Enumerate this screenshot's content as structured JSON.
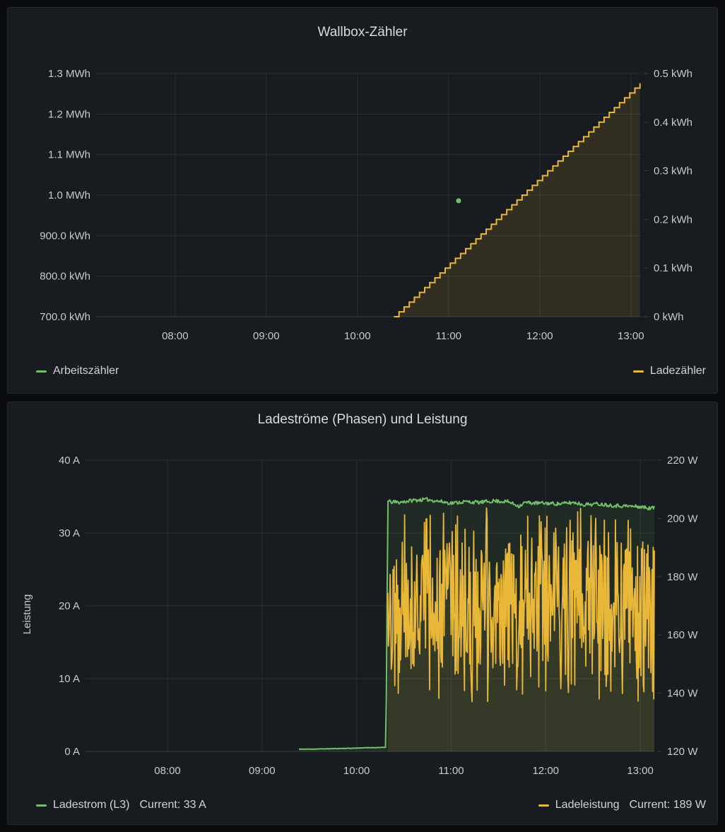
{
  "colors": {
    "page_background": "#0b0c0e",
    "panel_background": "#181b1f",
    "green": "#73bf69",
    "yellow": "#eab839",
    "grid": "rgba(204,204,220,0.10)"
  },
  "chart_data": [
    {
      "type": "line",
      "title": "Wallbox-Zähler",
      "x_ticks": [
        "08:00",
        "09:00",
        "10:00",
        "11:00",
        "12:00",
        "13:00"
      ],
      "x_tick_hours": [
        8,
        9,
        10,
        11,
        12,
        13
      ],
      "x_range_hours": [
        7.133,
        13.11
      ],
      "grid": true,
      "left_axis": {
        "ticks": [
          "1.3 MWh",
          "1.2 MWh",
          "1.1 MWh",
          "1.0 MWh",
          "900.0 kWh",
          "800.0 kWh",
          "700.0 kWh"
        ],
        "values": [
          1300,
          1200,
          1100,
          1000,
          900,
          800,
          700
        ],
        "range": [
          700,
          1300
        ],
        "unit": "kWh"
      },
      "right_axis": {
        "ticks": [
          "0.5 kWh",
          "0.4 kWh",
          "0.3 kWh",
          "0.2 kWh",
          "0.1 kWh",
          "0 kWh"
        ],
        "values": [
          0.5,
          0.4,
          0.3,
          0.2,
          0.1,
          0
        ],
        "range": [
          0,
          0.5
        ],
        "unit": "kWh"
      },
      "series": [
        {
          "name": "Arbeitszähler",
          "color": "#73bf69",
          "axis": "left",
          "style": "point",
          "points": [
            [
              11.11,
              986
            ]
          ]
        },
        {
          "name": "Ladezähler",
          "color": "#eab839",
          "axis": "right",
          "style": "step",
          "fill_opacity": 0.13,
          "step": {
            "t_start": 10.4,
            "t_end": 13.1,
            "v_start": 0,
            "v_end": 0.48,
            "steps": 48
          }
        }
      ],
      "legend": [
        {
          "label": "Arbeitszähler",
          "color": "#73bf69"
        },
        {
          "label": "Ladezähler",
          "color": "#eab839"
        }
      ],
      "legend_position": "bottom"
    },
    {
      "type": "line",
      "title": "Ladeströme (Phasen) und Leistung",
      "x_ticks": [
        "08:00",
        "09:00",
        "10:00",
        "11:00",
        "12:00",
        "13:00"
      ],
      "x_tick_hours": [
        8,
        9,
        10,
        11,
        12,
        13
      ],
      "x_range_hours": [
        7.133,
        13.149
      ],
      "grid": true,
      "left_axis": {
        "label": "Leistung",
        "ticks": [
          "40 A",
          "30 A",
          "20 A",
          "10 A",
          "0 A"
        ],
        "values": [
          40,
          30,
          20,
          10,
          0
        ],
        "range": [
          0,
          40
        ],
        "unit": "A"
      },
      "right_axis": {
        "ticks": [
          "220 W",
          "200 W",
          "180 W",
          "160 W",
          "140 W",
          "120 W"
        ],
        "values": [
          220,
          200,
          180,
          160,
          140,
          120
        ],
        "range": [
          120,
          220
        ],
        "unit": "W"
      },
      "series": [
        {
          "name": "Ladestrom (L3)",
          "color": "#73bf69",
          "axis": "left",
          "style": "line",
          "fill_opacity": 0.1,
          "jitter": 0.5,
          "seed": 11,
          "points": [
            [
              9.39,
              0.3
            ],
            [
              9.55,
              0.32
            ],
            [
              9.75,
              0.38
            ],
            [
              9.95,
              0.44
            ],
            [
              10.1,
              0.5
            ],
            [
              10.31,
              0.55
            ],
            [
              10.33,
              34.3
            ],
            [
              10.45,
              34.2
            ],
            [
              10.6,
              34.5
            ],
            [
              10.75,
              34.6
            ],
            [
              10.9,
              34.3
            ],
            [
              11.0,
              34.1
            ],
            [
              11.15,
              34.3
            ],
            [
              11.3,
              34.2
            ],
            [
              11.45,
              34.4
            ],
            [
              11.6,
              34.3
            ],
            [
              11.72,
              33.7
            ],
            [
              11.78,
              34.2
            ],
            [
              11.9,
              34.1
            ],
            [
              12.0,
              34.1
            ],
            [
              12.15,
              34.0
            ],
            [
              12.3,
              34.2
            ],
            [
              12.4,
              33.9
            ],
            [
              12.55,
              34.0
            ],
            [
              12.7,
              33.8
            ],
            [
              12.85,
              33.7
            ],
            [
              13.0,
              33.6
            ],
            [
              13.1,
              33.4
            ],
            [
              13.149,
              33.5
            ]
          ]
        },
        {
          "name": "Ladeleistung",
          "color": "#eab839",
          "axis": "right",
          "style": "noise",
          "fill_opacity": 0.1,
          "seed": 42,
          "noise": {
            "t_start": 10.33,
            "t_end": 13.149,
            "min": 137,
            "max": 204,
            "typical": 170,
            "n": 460,
            "end_value": 189
          }
        }
      ],
      "legend": [
        {
          "label": "Ladestrom (L3)",
          "value": "Current: 33 A",
          "color": "#73bf69"
        },
        {
          "label": "Ladeleistung",
          "value": "Current: 189 W",
          "color": "#eab839"
        }
      ],
      "legend_position": "bottom"
    }
  ]
}
